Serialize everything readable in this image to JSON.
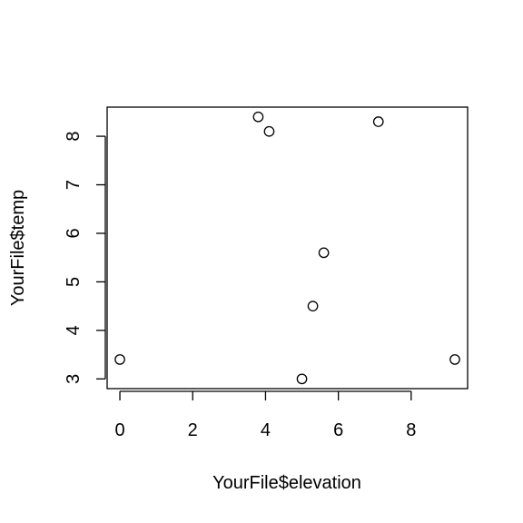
{
  "chart_data": {
    "type": "scatter",
    "title": "",
    "xlabel": "YourFile$elevation",
    "ylabel": "YourFile$temp",
    "xlim": [
      -0.35,
      9.55
    ],
    "ylim": [
      2.8,
      8.6
    ],
    "xticks": [
      0,
      2,
      4,
      6,
      8
    ],
    "yticks": [
      3,
      4,
      5,
      6,
      7,
      8
    ],
    "grid": false,
    "marker": "open-circle",
    "series": [
      {
        "points": [
          {
            "x": 0.0,
            "y": 3.4
          },
          {
            "x": 3.8,
            "y": 8.4
          },
          {
            "x": 4.1,
            "y": 8.1
          },
          {
            "x": 5.0,
            "y": 3.0
          },
          {
            "x": 5.3,
            "y": 4.5
          },
          {
            "x": 5.6,
            "y": 5.6
          },
          {
            "x": 7.1,
            "y": 8.3
          },
          {
            "x": 9.2,
            "y": 3.4
          }
        ]
      }
    ]
  }
}
